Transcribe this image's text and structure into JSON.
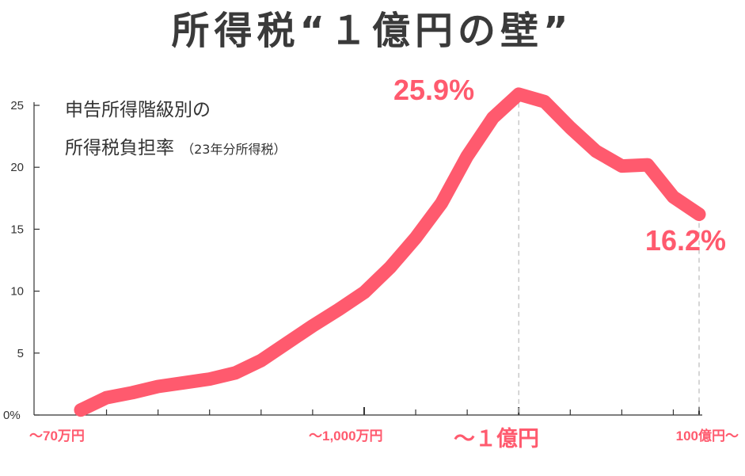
{
  "title": "所得税“１億円の壁”",
  "ylabel_main_1": "申告所得階級別の",
  "ylabel_main_2": "所得税負担率",
  "ylabel_note": "（23年分所得税）",
  "colors": {
    "line": "#ff5a6e",
    "axis": "#333333",
    "guide": "#bbbbbb",
    "title": "#3a3a3a"
  },
  "chart_data": {
    "type": "line",
    "title": "所得税“１億円の壁”",
    "ylabel": "申告所得階級別の所得税負担率（23年分所得税）",
    "ylim": [
      0,
      25
    ],
    "yticks": [
      "0%",
      "5",
      "10",
      "15",
      "20",
      "25"
    ],
    "ytick_values": [
      0,
      5,
      10,
      15,
      20,
      25
    ],
    "grid": false,
    "x_labels": [
      {
        "label": "～70万円",
        "index": 0
      },
      {
        "label": "～1,000万円",
        "index": 11
      },
      {
        "label": "～１億円",
        "index": 17
      },
      {
        "label": "100億円～",
        "index": 24
      }
    ],
    "series": [
      {
        "values": [
          0.4,
          1.4,
          1.8,
          2.3,
          2.6,
          2.9,
          3.4,
          4.4,
          5.8,
          7.2,
          8.5,
          9.9,
          11.9,
          14.3,
          17.1,
          20.9,
          24.0,
          25.9,
          25.3,
          23.2,
          21.3,
          20.1,
          20.2,
          17.6,
          16.2
        ]
      }
    ],
    "annotations": [
      {
        "text": "25.9%",
        "index": 17,
        "value": 25.9
      },
      {
        "text": "16.2%",
        "index": 24,
        "value": 16.2
      }
    ]
  }
}
